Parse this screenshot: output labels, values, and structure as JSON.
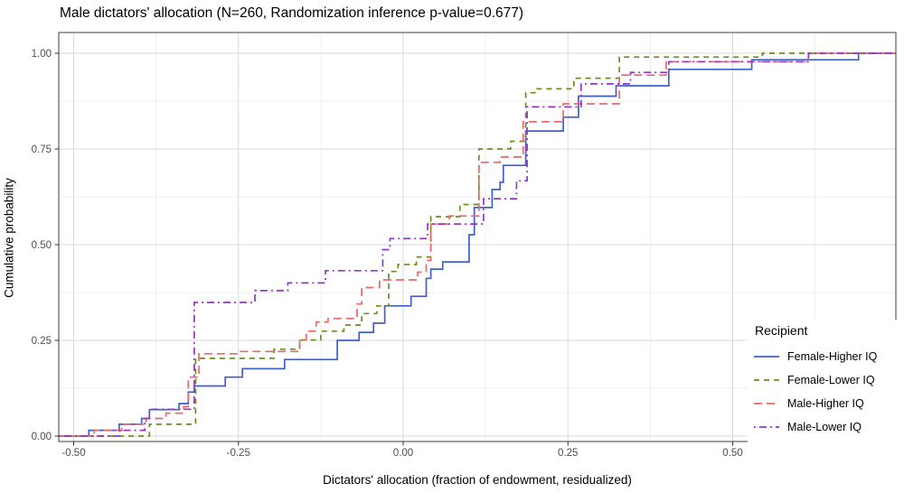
{
  "chart_data": {
    "type": "line",
    "subtype": "ecdf-step",
    "title": "Male dictators' allocation (N=260, Randomization inference p-value=0.677)",
    "xlabel": "Dictators' allocation (fraction of endowment, residualized)",
    "ylabel": "Cumulative probability",
    "legend_title": "Recipient",
    "legend_position": "inside-right-bottom",
    "grid": "major-and-minor",
    "x_ticks": {
      "values": [
        -0.5,
        -0.25,
        0,
        0.25,
        0.5
      ],
      "labels": [
        "-0.50",
        "-0.25",
        "0.00",
        "0.25",
        "0.50"
      ]
    },
    "y_ticks": {
      "values": [
        0,
        0.25,
        0.5,
        0.75,
        1
      ],
      "labels": [
        "0.00",
        "0.25",
        "0.50",
        "0.75",
        "1.00"
      ]
    },
    "x_minor": [
      -0.375,
      -0.125,
      0.125,
      0.375,
      0.625
    ],
    "y_minor": [
      0.125,
      0.375,
      0.625,
      0.875
    ],
    "xlim": [
      -0.523,
      0.748
    ],
    "ylim": [
      -0.014,
      1.043
    ],
    "series": [
      {
        "name": "Female-Higher IQ",
        "color": "#3D5FD0",
        "linetype": "solid",
        "points": [
          [
            -0.477,
            0.015
          ],
          [
            -0.431,
            0.031
          ],
          [
            -0.397,
            0.046
          ],
          [
            -0.385,
            0.069
          ],
          [
            -0.34,
            0.085
          ],
          [
            -0.326,
            0.115
          ],
          [
            -0.317,
            0.131
          ],
          [
            -0.27,
            0.154
          ],
          [
            -0.244,
            0.176
          ],
          [
            -0.18,
            0.2
          ],
          [
            -0.1,
            0.25
          ],
          [
            -0.067,
            0.271
          ],
          [
            -0.045,
            0.295
          ],
          [
            -0.028,
            0.34
          ],
          [
            0.012,
            0.365
          ],
          [
            0.035,
            0.412
          ],
          [
            0.042,
            0.436
          ],
          [
            0.06,
            0.455
          ],
          [
            0.1,
            0.526
          ],
          [
            0.108,
            0.597
          ],
          [
            0.135,
            0.644
          ],
          [
            0.147,
            0.663
          ],
          [
            0.152,
            0.707
          ],
          [
            0.186,
            0.797
          ],
          [
            0.243,
            0.833
          ],
          [
            0.266,
            0.888
          ],
          [
            0.323,
            0.915
          ],
          [
            0.403,
            0.958
          ],
          [
            0.529,
            0.983
          ],
          [
            0.691,
            1.0
          ]
        ]
      },
      {
        "name": "Female-Lower IQ",
        "color": "#6B8E23",
        "linetype": "dashed",
        "points": [
          [
            -0.385,
            0.031
          ],
          [
            -0.315,
            0.203
          ],
          [
            -0.196,
            0.227
          ],
          [
            -0.157,
            0.251
          ],
          [
            -0.125,
            0.274
          ],
          [
            -0.09,
            0.29
          ],
          [
            -0.063,
            0.32
          ],
          [
            -0.04,
            0.34
          ],
          [
            -0.022,
            0.43
          ],
          [
            -0.008,
            0.448
          ],
          [
            0.02,
            0.468
          ],
          [
            0.042,
            0.573
          ],
          [
            0.086,
            0.605
          ],
          [
            0.115,
            0.75
          ],
          [
            0.163,
            0.77
          ],
          [
            0.186,
            0.897
          ],
          [
            0.2,
            0.907
          ],
          [
            0.259,
            0.935
          ],
          [
            0.328,
            0.99
          ],
          [
            0.545,
            1.0
          ]
        ]
      },
      {
        "name": "Male-Higher IQ",
        "color": "#EC6868",
        "linetype": "longdash",
        "points": [
          [
            -0.469,
            0.015
          ],
          [
            -0.427,
            0.031
          ],
          [
            -0.39,
            0.046
          ],
          [
            -0.36,
            0.06
          ],
          [
            -0.333,
            0.077
          ],
          [
            -0.326,
            0.154
          ],
          [
            -0.31,
            0.215
          ],
          [
            -0.25,
            0.221
          ],
          [
            -0.157,
            0.251
          ],
          [
            -0.147,
            0.274
          ],
          [
            -0.132,
            0.298
          ],
          [
            -0.114,
            0.307
          ],
          [
            -0.07,
            0.345
          ],
          [
            -0.063,
            0.388
          ],
          [
            -0.036,
            0.408
          ],
          [
            0.022,
            0.428
          ],
          [
            0.035,
            0.459
          ],
          [
            0.042,
            0.554
          ],
          [
            0.07,
            0.575
          ],
          [
            0.115,
            0.715
          ],
          [
            0.147,
            0.729
          ],
          [
            0.182,
            0.821
          ],
          [
            0.243,
            0.868
          ],
          [
            0.328,
            0.943
          ],
          [
            0.399,
            0.978
          ],
          [
            0.615,
            1.0
          ]
        ]
      },
      {
        "name": "Male-Lower IQ",
        "color": "#9733C9",
        "linetype": "dotdash",
        "points": [
          [
            -0.43,
            0.015
          ],
          [
            -0.392,
            0.046
          ],
          [
            -0.385,
            0.07
          ],
          [
            -0.317,
            0.349
          ],
          [
            -0.225,
            0.38
          ],
          [
            -0.175,
            0.4
          ],
          [
            -0.118,
            0.432
          ],
          [
            -0.031,
            0.487
          ],
          [
            -0.02,
            0.516
          ],
          [
            0.037,
            0.554
          ],
          [
            0.122,
            0.62
          ],
          [
            0.172,
            0.667
          ],
          [
            0.188,
            0.86
          ],
          [
            0.27,
            0.92
          ],
          [
            0.345,
            0.95
          ],
          [
            0.403,
            0.978
          ],
          [
            0.615,
            1.0
          ]
        ]
      }
    ]
  }
}
